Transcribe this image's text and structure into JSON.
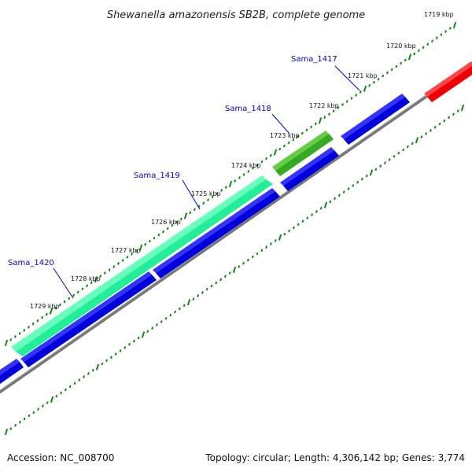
{
  "title": "Shewanella amazonensis SB2B, complete genome",
  "accession": "Accession: NC_008700",
  "summary": "Topology: circular; Length: 4,306,142 bp; Genes: 3,774",
  "ticks": [
    "1719 kbp",
    "1720 kbp",
    "1721 kbp",
    "1722 kbp",
    "1723 kbp",
    "1724 kbp",
    "1725 kbp",
    "1726 kbp",
    "1727 kbp",
    "1728 kbp",
    "1729 kbp"
  ],
  "genes": [
    {
      "name": "Sama_1417",
      "strand": "reverse",
      "color": "#0000dd"
    },
    {
      "name": "Sama_1418",
      "strand": "forward",
      "color": "#33bb22"
    },
    {
      "name": "Sama_1419",
      "strand": "forward",
      "color": "#22ee99"
    },
    {
      "name": "Sama_1420",
      "strand": "reverse",
      "color": "#0000dd"
    }
  ],
  "other_feature_color": "#ee0000",
  "tick_color": "#118811",
  "backbone_color": "#777777"
}
